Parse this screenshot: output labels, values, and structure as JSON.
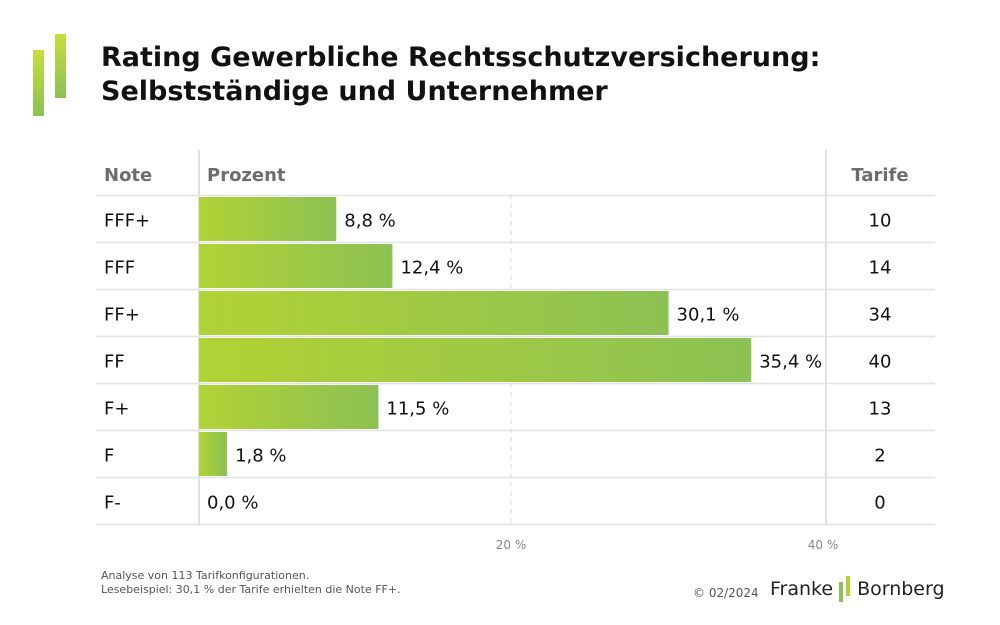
{
  "colors": {
    "bar_start": "#b2d235",
    "bar_end": "#8cc153",
    "accent": "#a5cc3a",
    "grid": "#e2e2e2",
    "header_text": "#6d6d6d"
  },
  "logo": {
    "icon": "brand-bars-icon"
  },
  "title": {
    "line1": "Rating Gewerbliche Rechtsschutzversicherung:",
    "line2": "Selbstständige und Unternehmer"
  },
  "table_headers": {
    "note": "Note",
    "percent": "Prozent",
    "tariffs": "Tarife"
  },
  "chart_data": {
    "type": "bar",
    "orientation": "horizontal",
    "categories": [
      "FFF+",
      "FFF",
      "FF+",
      "FF",
      "F+",
      "F",
      "F-"
    ],
    "values": [
      8.8,
      12.4,
      30.1,
      35.4,
      11.5,
      1.8,
      0.0
    ],
    "value_labels": [
      "8,8 %",
      "12,4 %",
      "30,1 %",
      "35,4 %",
      "11,5 %",
      "1,8 %",
      "0,0 %"
    ],
    "tariffs": [
      10,
      14,
      34,
      40,
      13,
      2,
      0
    ],
    "x_ticks": [
      20,
      40
    ],
    "x_tick_labels": [
      "20 %",
      "40 %"
    ],
    "xlim": [
      0,
      40
    ],
    "grid": "vertical dashed"
  },
  "footnote": {
    "line1": "Analyse von 113 Tarifkonfigurationen.",
    "line2": "Lesebeispiel: 30,1 % der Tarife erhielten die Note FF+."
  },
  "copyright": "© 02/2024",
  "brand": {
    "name_left": "Franke",
    "name_right": "Bornberg"
  }
}
